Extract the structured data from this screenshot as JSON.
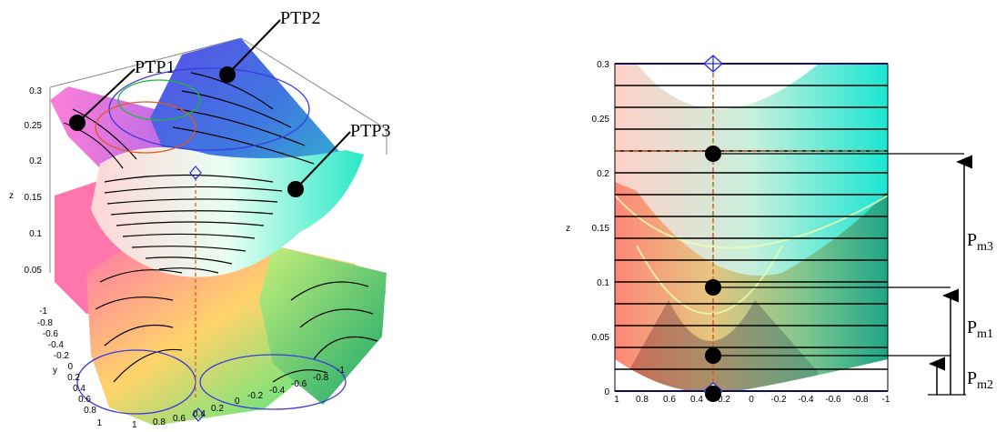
{
  "left_plot": {
    "callouts": {
      "ptp1": "PTP1",
      "ptp2": "PTP2",
      "ptp3": "PTP3"
    },
    "z_axis_label": "z",
    "y_axis_label": "y",
    "z_ticks": [
      "0.3",
      "0.25",
      "0.2",
      "0.15",
      "0.1",
      "0.05"
    ],
    "y_ticks": [
      "-1",
      "-0.8",
      "-0.6",
      "-0.4",
      "-0.2",
      "0",
      "0.2",
      "0.4",
      "0.6",
      "0.8",
      "1"
    ],
    "x_ticks": [
      "1",
      "0.8",
      "0.6",
      "0.4",
      "0.2",
      "0",
      "-0.2",
      "-0.4",
      "-0.6",
      "-0.8",
      "-1"
    ]
  },
  "right_plot": {
    "z_axis_label": "z",
    "z_ticks": [
      "0.3",
      "0.25",
      "0.2",
      "0.15",
      "0.1",
      "0.05",
      "0"
    ],
    "x_ticks": [
      "1",
      "0.8",
      "0.6",
      "0.4",
      "0.2",
      "0",
      "-0.2",
      "-0.4",
      "-0.6",
      "-0.8",
      "-1"
    ],
    "pm_labels": [
      {
        "main": "P",
        "sub": "m3"
      },
      {
        "main": "P",
        "sub": "m1"
      },
      {
        "main": "P",
        "sub": "m2"
      }
    ]
  }
}
